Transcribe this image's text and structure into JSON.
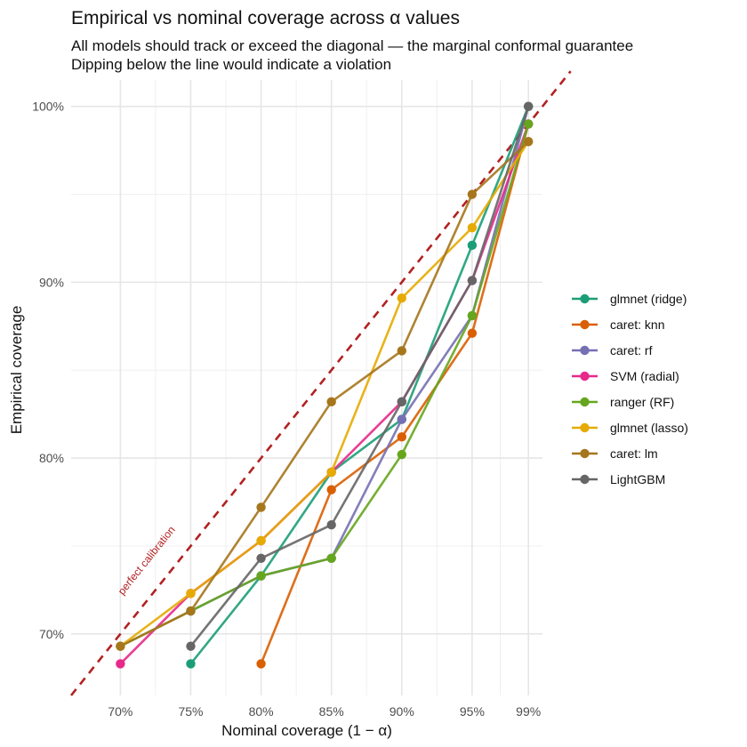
{
  "chart_data": {
    "type": "line",
    "title": "Empirical vs nominal coverage across α values",
    "subtitle_lines": [
      "All models should track or exceed the diagonal — the marginal conformal guarantee",
      "Dipping below the line would indicate a violation"
    ],
    "xlabel": "Nominal coverage (1 − α)",
    "ylabel": "Empirical coverage",
    "x": [
      0.7,
      0.75,
      0.8,
      0.85,
      0.9,
      0.95,
      0.99
    ],
    "x_tick_labels": [
      "70%",
      "75%",
      "80%",
      "85%",
      "90%",
      "95%",
      "99%"
    ],
    "y_ticks": [
      0.7,
      0.8,
      0.9,
      1.0
    ],
    "y_tick_labels": [
      "70%",
      "80%",
      "90%",
      "100%"
    ],
    "xlim": [
      0.665,
      1.0
    ],
    "ylim": [
      0.665,
      1.015
    ],
    "grid": true,
    "legend_position": "right",
    "reference_line": {
      "label": "perfect calibration",
      "color": "#b22222",
      "style": "dashed"
    },
    "series": [
      {
        "name": "glmnet (ridge)",
        "color": "#1b9e77",
        "values": [
          null,
          0.683,
          0.733,
          0.792,
          0.822,
          0.921,
          1.0
        ]
      },
      {
        "name": "caret: knn",
        "color": "#d95f02",
        "values": [
          null,
          null,
          0.683,
          0.782,
          0.812,
          0.871,
          0.99
        ]
      },
      {
        "name": "caret: rf",
        "color": "#7570b3",
        "values": [
          null,
          0.713,
          0.733,
          0.743,
          0.822,
          0.881,
          1.0
        ]
      },
      {
        "name": "SVM (radial)",
        "color": "#e7298a",
        "values": [
          0.683,
          0.723,
          0.753,
          0.792,
          0.832,
          0.901,
          0.99
        ]
      },
      {
        "name": "ranger (RF)",
        "color": "#66a61e",
        "values": [
          0.693,
          0.713,
          0.733,
          0.743,
          0.802,
          0.881,
          0.99
        ]
      },
      {
        "name": "glmnet (lasso)",
        "color": "#e6ab02",
        "values": [
          0.693,
          0.723,
          0.753,
          0.792,
          0.891,
          0.931,
          0.98
        ]
      },
      {
        "name": "caret: lm",
        "color": "#a6761d",
        "values": [
          0.693,
          0.713,
          0.772,
          0.832,
          0.861,
          0.95,
          0.98
        ]
      },
      {
        "name": "LightGBM",
        "color": "#666666",
        "values": [
          null,
          0.693,
          0.743,
          0.762,
          0.832,
          0.901,
          1.0
        ]
      }
    ]
  }
}
